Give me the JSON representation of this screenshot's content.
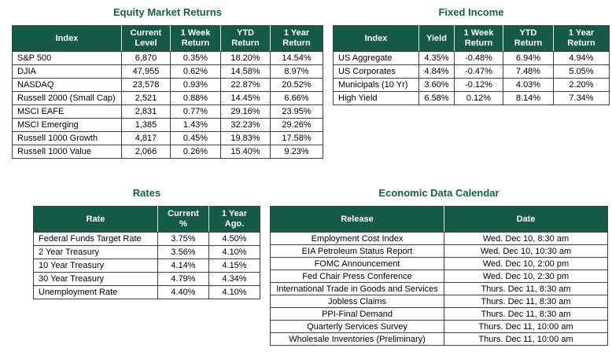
{
  "page": {
    "background": "#FFFFFF"
  },
  "colors": {
    "table_header_bg": "#155948",
    "table_header_text": "#FFFFFF",
    "title_text": "#166049",
    "body_text": "#000000",
    "border": "#3F3F3F"
  },
  "tables": [
    {
      "id": "equity-market-returns",
      "title": "Equity Market Returns",
      "headers": [
        "Index",
        "Current\nLevel",
        "1 Week\nReturn",
        "YTD\nReturn",
        "1 Year\nReturn"
      ],
      "rows": [
        [
          "S&P 500",
          "6,870",
          "0.35%",
          "18.20%",
          "14.54%"
        ],
        [
          "DJIA",
          "47,955",
          "0.62%",
          "14.58%",
          "8.97%"
        ],
        [
          "NASDAQ",
          "23,578",
          "0.93%",
          "22.87%",
          "20.52%"
        ],
        [
          "Russell 2000 (Small Cap)",
          "2,521",
          "0.88%",
          "14.45%",
          "6.66%"
        ],
        [
          "MSCI EAFE",
          "2,831",
          "0.77%",
          "29.16%",
          "23.95%"
        ],
        [
          "MSCI Emerging",
          "1,385",
          "1.43%",
          "32.23%",
          "29.26%"
        ],
        [
          "Russell 1000 Growth",
          "4,817",
          "0.45%",
          "19.83%",
          "17.58%"
        ],
        [
          "Russell 1000 Value",
          "2,066",
          "0.26%",
          "15.40%",
          "9.23%"
        ]
      ]
    },
    {
      "id": "fixed-income",
      "title": "Fixed Income",
      "headers": [
        "Index",
        "Yield",
        "1 Week\nReturn",
        "YTD\nReturn",
        "1 Year\nReturn"
      ],
      "rows": [
        [
          "US Aggregate",
          "4.35%",
          "-0.48%",
          "6.94%",
          "4.94%"
        ],
        [
          "US Corporates",
          "4.84%",
          "-0.47%",
          "7.48%",
          "5.05%"
        ],
        [
          "Municipals (10 Yr)",
          "3.60%",
          "-0.12%",
          "4.03%",
          "2.20%"
        ],
        [
          "High Yield",
          "6.58%",
          "0.12%",
          "8.14%",
          "7.34%"
        ]
      ]
    },
    {
      "id": "rates",
      "title": "Rates",
      "headers": [
        "Rate",
        "Current\n%",
        "1 Year\nAgo."
      ],
      "rows": [
        [
          "Federal Funds Target Rate",
          "3.75%",
          "4.50%"
        ],
        [
          "2 Year Treasury",
          "3.56%",
          "4.10%"
        ],
        [
          "10 Year Treasury",
          "4.14%",
          "4.15%"
        ],
        [
          "30 Year Treasury",
          "4.79%",
          "4.34%"
        ],
        [
          "Unemployment Rate",
          "4.40%",
          "4.10%"
        ]
      ]
    },
    {
      "id": "economic-data-calendar",
      "title": "Economic Data Calendar",
      "headers": [
        "Release",
        "Date"
      ],
      "rows": [
        [
          "Employment Cost Index",
          "Wed. Dec 10, 8:30 am"
        ],
        [
          "EIA Petroleum Status Report",
          "Wed. Dec 10, 10:30 am"
        ],
        [
          "FOMC Announcement",
          "Wed. Dec 10, 2:00 pm"
        ],
        [
          "Fed Chair Press Conference",
          "Wed. Dec 10, 2:30 pm"
        ],
        [
          "International Trade in Goods and Services",
          "Thurs. Dec 11, 8:30 am"
        ],
        [
          "Jobless Claims",
          "Thurs. Dec 11, 8:30 am"
        ],
        [
          "PPI-Final Demand",
          "Thurs. Dec 11, 8:30 am"
        ],
        [
          "Quarterly Services Survey",
          "Thurs. Dec 11, 10:00 am"
        ],
        [
          "Wholesale Inventories (Preliminary)",
          "Thurs. Dec 11, 10:00 am"
        ]
      ]
    }
  ]
}
